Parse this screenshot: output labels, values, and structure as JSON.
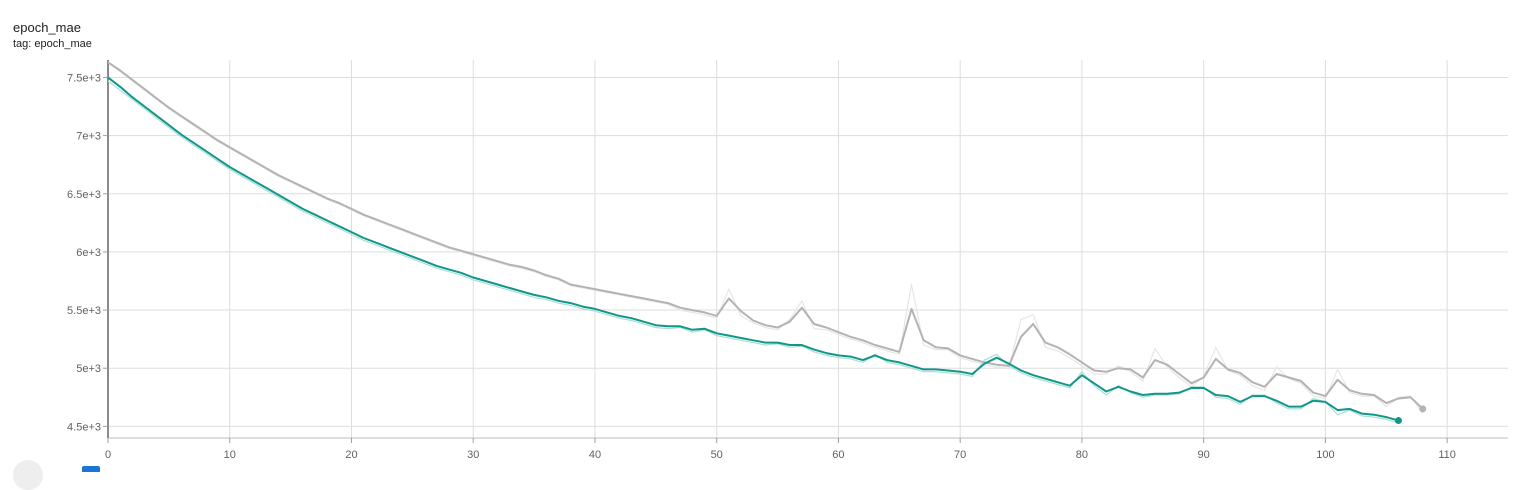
{
  "header": {
    "title": "epoch_mae",
    "tag": "tag: epoch_mae"
  },
  "colors": {
    "smoothed_main": "#12968a",
    "raw_main": "#a9ded6",
    "smoothed_other": "#b3b3b3",
    "raw_other": "#e6e6e6",
    "grid": "#dddddd",
    "axis": "#9e9e9e"
  },
  "chart_data": {
    "type": "line",
    "title": "epoch_mae",
    "xlabel": "",
    "ylabel": "",
    "xlim": [
      0,
      115
    ],
    "ylim": [
      4.4,
      7.65
    ],
    "x_ticks": [
      0,
      10,
      20,
      30,
      40,
      50,
      60,
      70,
      80,
      90,
      100,
      110
    ],
    "x_tick_labels": [
      "0",
      "10",
      "20",
      "30",
      "40",
      "50",
      "60",
      "70",
      "80",
      "90",
      "100",
      "110"
    ],
    "y_ticks": [
      4.5,
      5,
      5.5,
      6,
      6.5,
      7,
      7.5
    ],
    "y_tick_labels": [
      "4.5e+3",
      "5e+3",
      "5.5e+3",
      "6e+3",
      "6.5e+3",
      "7e+3",
      "7.5e+3"
    ],
    "grid": true,
    "series": [
      {
        "role": "other-run",
        "smoothed": [
          7.63,
          7.56,
          7.48,
          7.4,
          7.32,
          7.24,
          7.17,
          7.1,
          7.03,
          6.96,
          6.9,
          6.84,
          6.78,
          6.72,
          6.66,
          6.61,
          6.56,
          6.51,
          6.46,
          6.42,
          6.37,
          6.32,
          6.28,
          6.24,
          6.2,
          6.16,
          6.12,
          6.08,
          6.04,
          6.01,
          5.98,
          5.95,
          5.92,
          5.89,
          5.87,
          5.84,
          5.8,
          5.77,
          5.72,
          5.7,
          5.68,
          5.66,
          5.64,
          5.62,
          5.6,
          5.58,
          5.56,
          5.52,
          5.5,
          5.48,
          5.45,
          5.6,
          5.49,
          5.41,
          5.37,
          5.35,
          5.4,
          5.52,
          5.38,
          5.35,
          5.31,
          5.27,
          5.24,
          5.2,
          5.17,
          5.14,
          5.51,
          5.24,
          5.18,
          5.17,
          5.11,
          5.08,
          5.05,
          5.03,
          5.02,
          5.27,
          5.38,
          5.22,
          5.18,
          5.12,
          5.05,
          4.98,
          4.97,
          5.0,
          4.99,
          4.92,
          5.07,
          5.03,
          4.95,
          4.87,
          4.92,
          5.08,
          4.99,
          4.96,
          4.88,
          4.84,
          4.95,
          4.92,
          4.89,
          4.79,
          4.76,
          4.9,
          4.81,
          4.78,
          4.77,
          4.7,
          4.74,
          4.75,
          4.65
        ],
        "raw": [
          7.63,
          7.55,
          7.47,
          7.39,
          7.31,
          7.23,
          7.16,
          7.09,
          7.02,
          6.95,
          6.89,
          6.83,
          6.77,
          6.71,
          6.65,
          6.6,
          6.55,
          6.5,
          6.45,
          6.41,
          6.36,
          6.31,
          6.27,
          6.23,
          6.19,
          6.15,
          6.11,
          6.07,
          6.03,
          6.0,
          5.97,
          5.94,
          5.91,
          5.88,
          5.86,
          5.83,
          5.79,
          5.76,
          5.71,
          5.69,
          5.67,
          5.65,
          5.63,
          5.61,
          5.59,
          5.57,
          5.55,
          5.5,
          5.48,
          5.46,
          5.43,
          5.68,
          5.45,
          5.39,
          5.35,
          5.33,
          5.42,
          5.58,
          5.34,
          5.33,
          5.29,
          5.25,
          5.22,
          5.18,
          5.15,
          5.12,
          5.72,
          5.2,
          5.16,
          5.16,
          5.09,
          5.06,
          5.03,
          5.01,
          5.0,
          5.42,
          5.46,
          5.18,
          5.15,
          5.09,
          5.02,
          4.95,
          4.95,
          5.02,
          4.97,
          4.89,
          5.17,
          5.01,
          4.92,
          4.84,
          4.93,
          5.18,
          4.98,
          4.94,
          4.85,
          4.81,
          5.01,
          4.91,
          4.87,
          4.76,
          4.74,
          4.99,
          4.79,
          4.76,
          4.76,
          4.67,
          4.75,
          4.76,
          4.61
        ]
      },
      {
        "role": "current-run",
        "smoothed": [
          7.5,
          7.42,
          7.33,
          7.25,
          7.17,
          7.09,
          7.01,
          6.94,
          6.87,
          6.8,
          6.73,
          6.67,
          6.61,
          6.55,
          6.49,
          6.43,
          6.37,
          6.32,
          6.27,
          6.22,
          6.17,
          6.12,
          6.08,
          6.04,
          6.0,
          5.96,
          5.92,
          5.88,
          5.85,
          5.82,
          5.78,
          5.75,
          5.72,
          5.69,
          5.66,
          5.63,
          5.61,
          5.58,
          5.56,
          5.53,
          5.51,
          5.48,
          5.45,
          5.43,
          5.4,
          5.37,
          5.36,
          5.36,
          5.33,
          5.34,
          5.3,
          5.28,
          5.26,
          5.24,
          5.22,
          5.22,
          5.2,
          5.2,
          5.16,
          5.13,
          5.11,
          5.1,
          5.07,
          5.11,
          5.07,
          5.05,
          5.02,
          4.99,
          4.99,
          4.98,
          4.97,
          4.95,
          5.04,
          5.09,
          5.04,
          4.98,
          4.94,
          4.91,
          4.88,
          4.85,
          4.94,
          4.87,
          4.8,
          4.84,
          4.8,
          4.77,
          4.78,
          4.78,
          4.79,
          4.83,
          4.83,
          4.77,
          4.76,
          4.71,
          4.76,
          4.76,
          4.72,
          4.67,
          4.67,
          4.72,
          4.71,
          4.64,
          4.65,
          4.61,
          4.6,
          4.58,
          4.55
        ],
        "raw": [
          7.47,
          7.39,
          7.31,
          7.23,
          7.15,
          7.07,
          6.99,
          6.92,
          6.85,
          6.78,
          6.71,
          6.65,
          6.59,
          6.53,
          6.47,
          6.41,
          6.35,
          6.3,
          6.25,
          6.2,
          6.15,
          6.1,
          6.06,
          6.02,
          5.98,
          5.94,
          5.9,
          5.86,
          5.83,
          5.8,
          5.76,
          5.73,
          5.7,
          5.67,
          5.64,
          5.61,
          5.59,
          5.56,
          5.54,
          5.51,
          5.49,
          5.46,
          5.43,
          5.41,
          5.38,
          5.35,
          5.34,
          5.35,
          5.31,
          5.33,
          5.28,
          5.26,
          5.24,
          5.22,
          5.2,
          5.21,
          5.18,
          5.19,
          5.14,
          5.11,
          5.09,
          5.08,
          5.05,
          5.12,
          5.05,
          5.03,
          5.0,
          4.97,
          4.97,
          4.96,
          4.95,
          4.93,
          5.07,
          5.12,
          5.02,
          4.96,
          4.92,
          4.89,
          4.86,
          4.83,
          4.97,
          4.85,
          4.77,
          4.85,
          4.79,
          4.75,
          4.77,
          4.77,
          4.78,
          4.84,
          4.84,
          4.75,
          4.74,
          4.69,
          4.77,
          4.77,
          4.7,
          4.65,
          4.65,
          4.74,
          4.71,
          4.6,
          4.64,
          4.59,
          4.58,
          4.56,
          4.53
        ]
      }
    ]
  }
}
